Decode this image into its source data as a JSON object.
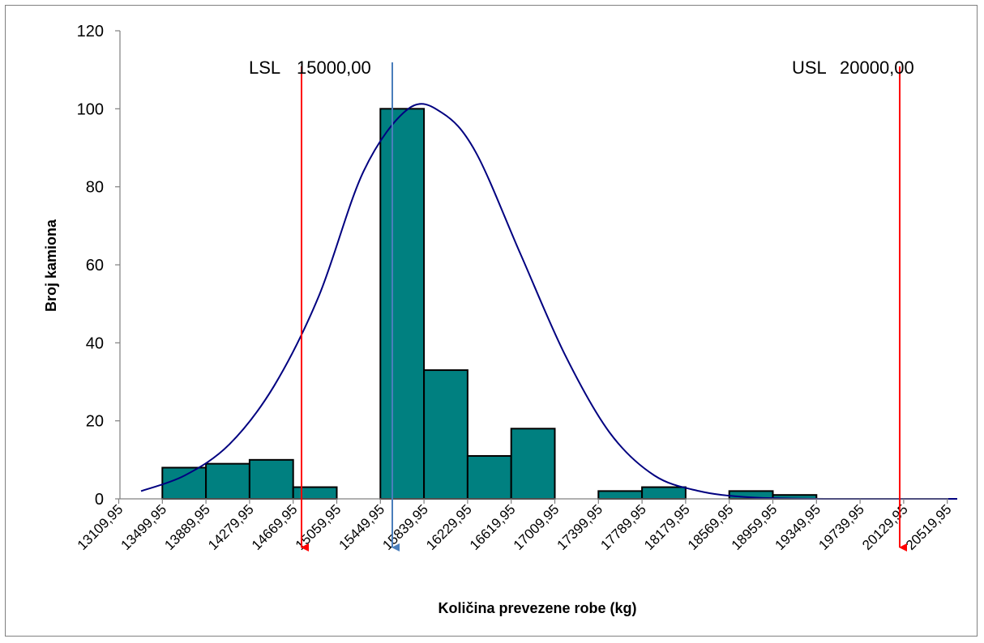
{
  "chart_data": {
    "type": "bar",
    "title": "",
    "xlabel": "Količina prevezene robe (kg)",
    "ylabel": "Broj kamiona",
    "ylim": [
      0,
      120
    ],
    "yticks": [
      "0",
      "20",
      "40",
      "60",
      "80",
      "100",
      "120"
    ],
    "ytick_values": [
      0,
      20,
      40,
      60,
      80,
      100,
      120
    ],
    "categories": [
      "13109,95",
      "13499,95",
      "13889,95",
      "14279,95",
      "14669,95",
      "15059,95",
      "15449,95",
      "15839,95",
      "16229,95",
      "16619,95",
      "17009,95",
      "17399,95",
      "17789,95",
      "18179,95",
      "18569,95",
      "18959,95",
      "19349,95",
      "19739,95",
      "20129,95",
      "20519,95"
    ],
    "bars": [
      {
        "from": "13499,95",
        "to": "13889,95",
        "value": 8
      },
      {
        "from": "13889,95",
        "to": "14279,95",
        "value": 9
      },
      {
        "from": "14279,95",
        "to": "14669,95",
        "value": 10
      },
      {
        "from": "14669,95",
        "to": "15059,95",
        "value": 3
      },
      {
        "from": "15449,95",
        "to": "15839,95",
        "value": 100
      },
      {
        "from": "15839,95",
        "to": "16229,95",
        "value": 33
      },
      {
        "from": "16229,95",
        "to": "16619,95",
        "value": 11
      },
      {
        "from": "16619,95",
        "to": "17009,95",
        "value": 18
      },
      {
        "from": "17399,95",
        "to": "17789,95",
        "value": 2
      },
      {
        "from": "17789,95",
        "to": "18179,95",
        "value": 3
      },
      {
        "from": "18569,95",
        "to": "18959,95",
        "value": 2
      },
      {
        "from": "18959,95",
        "to": "19349,95",
        "value": 1
      }
    ],
    "normal_curve": {
      "x": [
        13309,
        13700,
        14100,
        14500,
        14900,
        15300,
        15700,
        16000,
        16300,
        16700,
        17100,
        17500,
        17900,
        18300,
        18700,
        19100,
        19500,
        19900,
        20300,
        20609
      ],
      "y": [
        2,
        6,
        14,
        29,
        52,
        84,
        100,
        99,
        89,
        63,
        37,
        17,
        6,
        2,
        0.5,
        0.1,
        0,
        0,
        0,
        0
      ]
    },
    "spec_limits": [
      {
        "name": "LSL",
        "value_label": "15000,00",
        "value": 15000
      },
      {
        "name": "USL",
        "value_label": "20000,00",
        "value": 20000
      }
    ],
    "mean_marker": {
      "value": 15550
    },
    "colors": {
      "bar_fill": "#008080",
      "bar_stroke": "#000000",
      "curve": "#000080",
      "spec_arrow": "#ff0000",
      "mean_arrow": "#4a7ebb"
    },
    "grid": false,
    "legend": "none"
  }
}
